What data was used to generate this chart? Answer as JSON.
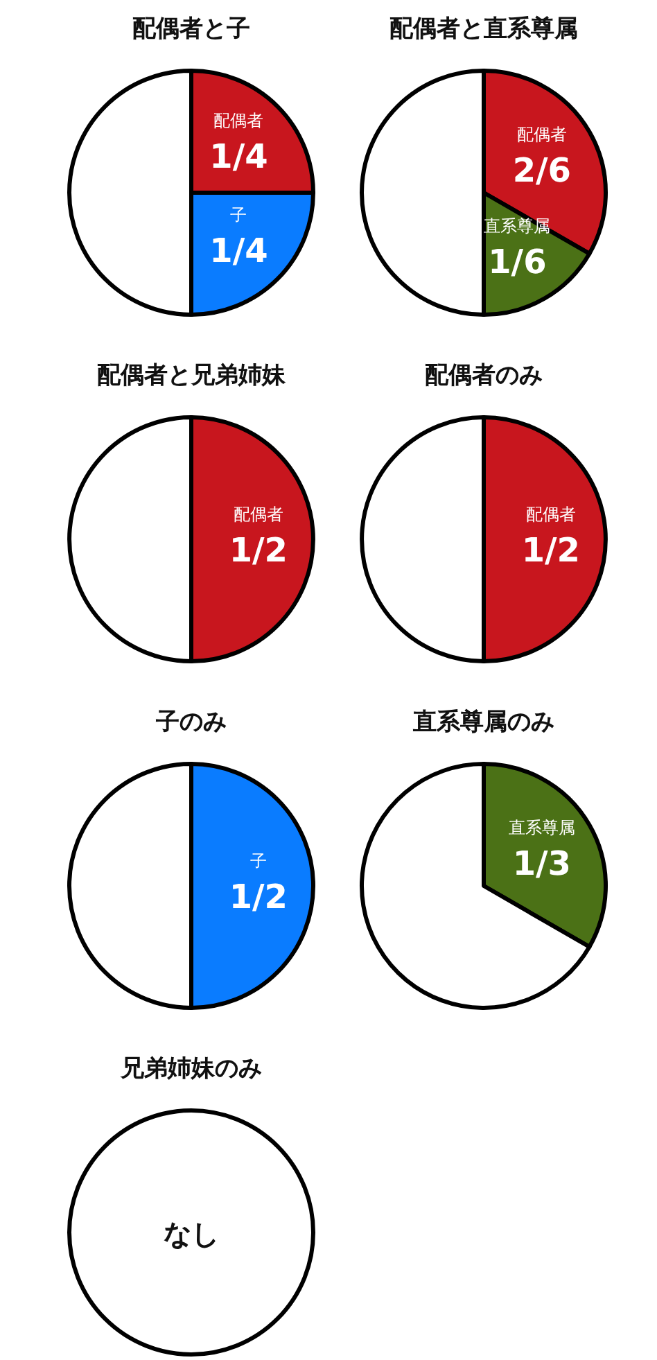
{
  "chart_data": [
    {
      "type": "pie",
      "title": "配偶者と子",
      "categories": [
        "配偶者",
        "子",
        null
      ],
      "values": [
        0.25,
        0.25,
        0.5
      ],
      "value_labels": [
        "1/4",
        "1/4",
        null
      ],
      "colors": [
        "#c8161e",
        "#0a7cff",
        "#ffffff"
      ]
    },
    {
      "type": "pie",
      "title": "配偶者と直系尊属",
      "categories": [
        "配偶者",
        "直系尊属",
        null
      ],
      "values": [
        0.3333,
        0.1667,
        0.5
      ],
      "value_labels": [
        "2/6",
        "1/6",
        null
      ],
      "colors": [
        "#c8161e",
        "#4b7116",
        "#ffffff"
      ]
    },
    {
      "type": "pie",
      "title": "配偶者と兄弟姉妹",
      "categories": [
        "配偶者",
        null
      ],
      "values": [
        0.5,
        0.5
      ],
      "value_labels": [
        "1/2",
        null
      ],
      "colors": [
        "#c8161e",
        "#ffffff"
      ]
    },
    {
      "type": "pie",
      "title": "配偶者のみ",
      "categories": [
        "配偶者",
        null
      ],
      "values": [
        0.5,
        0.5
      ],
      "value_labels": [
        "1/2",
        null
      ],
      "colors": [
        "#c8161e",
        "#ffffff"
      ]
    },
    {
      "type": "pie",
      "title": "子のみ",
      "categories": [
        "子",
        null
      ],
      "values": [
        0.5,
        0.5
      ],
      "value_labels": [
        "1/2",
        null
      ],
      "colors": [
        "#0a7cff",
        "#ffffff"
      ]
    },
    {
      "type": "pie",
      "title": "直系尊属のみ",
      "categories": [
        "直系尊属",
        null
      ],
      "values": [
        0.3333,
        0.6667
      ],
      "value_labels": [
        "1/3",
        null
      ],
      "colors": [
        "#4b7116",
        "#ffffff"
      ]
    },
    {
      "type": "pie",
      "title": "兄弟姉妹のみ",
      "categories": [
        null
      ],
      "values": [
        1
      ],
      "colors": [
        "#ffffff"
      ],
      "annotations": [
        "なし"
      ]
    }
  ]
}
